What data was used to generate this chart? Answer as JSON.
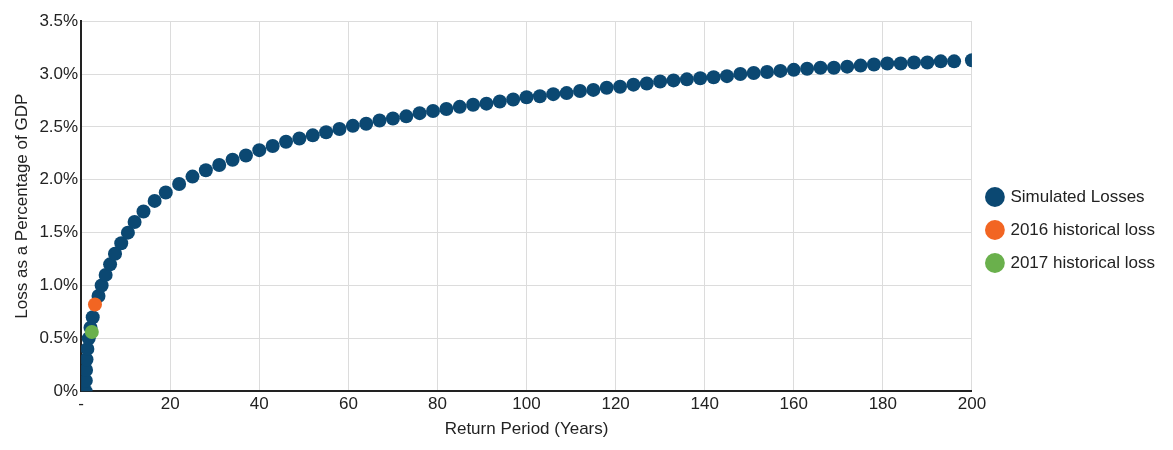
{
  "chart_data": {
    "type": "scatter",
    "xlabel": "Return Period (Years)",
    "ylabel": "Loss as a Percentage of GDP",
    "xlim": [
      0,
      200
    ],
    "xticks": [
      {
        "value": 0,
        "label": "-"
      },
      20,
      40,
      60,
      80,
      100,
      120,
      140,
      160,
      180,
      200
    ],
    "ylim": [
      0,
      3.5
    ],
    "yticks": [
      {
        "value": 0,
        "label": "0%"
      },
      {
        "value": 0.5,
        "label": "0.5%"
      },
      {
        "value": 1,
        "label": "1.0%"
      },
      {
        "value": 1.5,
        "label": "1.5%"
      },
      {
        "value": 2,
        "label": "2.0%"
      },
      {
        "value": 2.5,
        "label": "2.5%"
      },
      {
        "value": 3,
        "label": "3.0%"
      },
      {
        "value": 3.5,
        "label": "3.5%"
      }
    ],
    "grid": true,
    "legend": "right",
    "marker": "circle",
    "series": [
      {
        "name": "Simulated Losses",
        "color": "#0b4872",
        "x": [
          1,
          1.05,
          1.1,
          1.2,
          1.4,
          1.7,
          2.1,
          2.6,
          3.2,
          3.9,
          4.6,
          5.5,
          6.5,
          7.6,
          9,
          10.5,
          12,
          14,
          16.5,
          19,
          22,
          25,
          28,
          31,
          34,
          37,
          40,
          43,
          46,
          49,
          52,
          55,
          58,
          61,
          64,
          67,
          70,
          73,
          76,
          79,
          82,
          85,
          88,
          91,
          94,
          97,
          100,
          103,
          106,
          109,
          112,
          115,
          118,
          121,
          124,
          127,
          130,
          133,
          136,
          139,
          142,
          145,
          148,
          151,
          154,
          157,
          160,
          163,
          166,
          169,
          172,
          175,
          178,
          181,
          184,
          187,
          190,
          193,
          196,
          200
        ],
        "values": [
          0,
          0.1,
          0.2,
          0.3,
          0.4,
          0.5,
          0.6,
          0.7,
          null,
          0.9,
          1.0,
          1.1,
          1.2,
          1.3,
          1.4,
          1.5,
          1.6,
          1.7,
          1.8,
          1.88,
          1.96,
          2.03,
          2.09,
          2.14,
          2.19,
          2.23,
          2.28,
          2.32,
          2.36,
          2.39,
          2.42,
          2.45,
          2.48,
          2.51,
          2.53,
          2.56,
          2.58,
          2.6,
          2.63,
          2.65,
          2.67,
          2.69,
          2.71,
          2.72,
          2.74,
          2.76,
          2.78,
          2.79,
          2.81,
          2.82,
          2.84,
          2.85,
          2.87,
          2.88,
          2.9,
          2.91,
          2.93,
          2.94,
          2.95,
          2.96,
          2.97,
          2.98,
          3.0,
          3.01,
          3.02,
          3.03,
          3.04,
          3.05,
          3.06,
          3.06,
          3.07,
          3.08,
          3.09,
          3.1,
          3.1,
          3.11,
          3.11,
          3.12,
          3.12,
          3.13
        ]
      },
      {
        "name": "2016 historical loss",
        "color": "#f26522",
        "x": [
          3.1
        ],
        "values": [
          0.82
        ]
      },
      {
        "name": "2017 historical loss",
        "color": "#6ab04c",
        "x": [
          2.4
        ],
        "values": [
          0.56
        ]
      }
    ]
  }
}
